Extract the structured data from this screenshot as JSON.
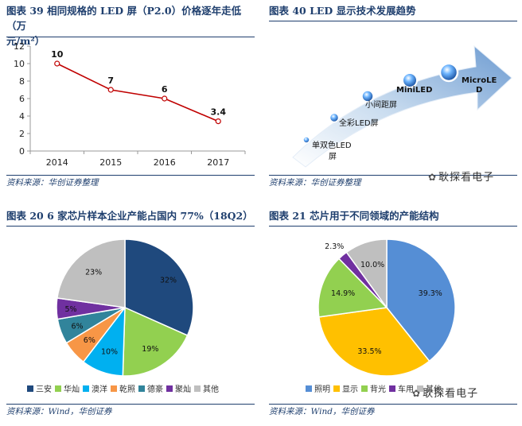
{
  "panels": {
    "p39": {
      "title_line1": "图表 39   相同规格的 LED 屏（P2.0）价格逐年走低（万",
      "title_line2": "元/m²）",
      "source": "资料来源：华创证券整理"
    },
    "p40": {
      "title": "图表 40   LED 显示技术发展趋势",
      "source": "资料来源：华创证券整理",
      "watermark": "耿探看电子"
    },
    "p20": {
      "title": "图表 20   6 家芯片样本企业产能占国内 77%（18Q2）",
      "source": "资料来源：Wind，华创证券"
    },
    "p21": {
      "title": "图表 21   芯片用于不同领域的产能结构",
      "source": "资料来源：Wind，华创证券",
      "watermark": "耿探看电子"
    }
  },
  "led_stages": [
    {
      "label_lines": [
        "单双色LED",
        "屏"
      ]
    },
    {
      "label_lines": [
        "全彩LED屏"
      ]
    },
    {
      "label_lines": [
        "小间距屏"
      ]
    },
    {
      "label_lines": [
        "MiniLED"
      ]
    },
    {
      "label_lines": [
        "MicroLE",
        "D"
      ]
    }
  ],
  "colors": {
    "title_blue": "#1f3f6e",
    "line_red": "#c00000",
    "pie_navy": "#1f497d",
    "pie_green": "#92d050",
    "pie_cyan": "#00b0f0",
    "pie_orange": "#f79646",
    "pie_teal": "#31849b",
    "pie_purple": "#7030a0",
    "pie_gray": "#bfbfbf",
    "pie_blue": "#558ed5",
    "pie_yellow": "#ffc000"
  },
  "chart_data": [
    {
      "type": "line",
      "x": [
        "2014",
        "2015",
        "2016",
        "2017"
      ],
      "series": [
        {
          "values": [
            10,
            7,
            6,
            3.4
          ]
        }
      ],
      "data_labels": [
        "10",
        "7",
        "6",
        "3.4"
      ],
      "ylim": [
        0,
        12
      ],
      "yticks": [
        0,
        2,
        4,
        6,
        8,
        10,
        12
      ],
      "grid": false
    },
    {
      "type": "pie",
      "labels": [
        "三安",
        "华灿",
        "澳洋",
        "乾照",
        "德豪",
        "聚灿",
        "其他"
      ],
      "values": [
        32,
        19,
        10,
        6,
        6,
        5,
        23
      ],
      "data_labels": [
        "32%",
        "19%",
        "10%",
        "6%",
        "6%",
        "5%",
        "23%"
      ],
      "colors": [
        "#1f497d",
        "#92d050",
        "#00b0f0",
        "#f79646",
        "#31849b",
        "#7030a0",
        "#bfbfbf"
      ],
      "legend": "bottom"
    },
    {
      "type": "pie",
      "labels": [
        "照明",
        "显示",
        "背光",
        "车用",
        "其他"
      ],
      "values": [
        39.3,
        33.5,
        14.9,
        2.3,
        10.0
      ],
      "data_labels": [
        "39.3%",
        "33.5%",
        "14.9%",
        "2.3%",
        "10.0%"
      ],
      "colors": [
        "#558ed5",
        "#ffc000",
        "#92d050",
        "#7030a0",
        "#bfbfbf"
      ],
      "legend": "bottom"
    }
  ]
}
